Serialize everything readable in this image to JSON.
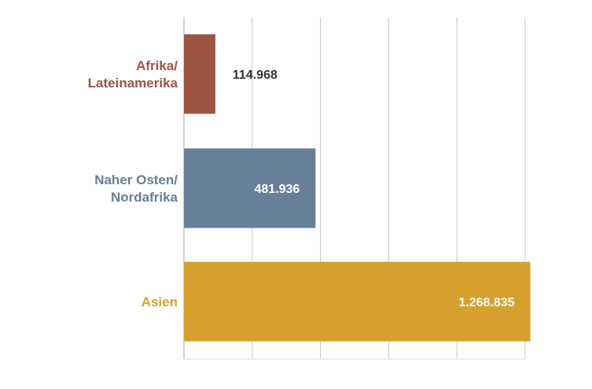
{
  "chart_data": {
    "type": "bar",
    "orientation": "horizontal",
    "title": "",
    "xlabel": "",
    "ylabel": "",
    "categories": [
      [
        "Afrika/",
        "Lateinamerika"
      ],
      [
        "Naher Osten/",
        "Nordafrika"
      ],
      [
        "Asien"
      ]
    ],
    "values": [
      114968,
      481936,
      1268835
    ],
    "value_labels": [
      "114.968",
      "481.936",
      "1.268.835"
    ],
    "colors": [
      "#9e5443",
      "#677f98",
      "#d5a02e"
    ],
    "value_label_colors": [
      "#333333",
      "#ffffff",
      "#ffffff"
    ],
    "value_label_position": [
      "outside",
      "inside",
      "inside"
    ],
    "xlim": [
      0,
      1250000
    ],
    "grid": true,
    "legend": "none"
  }
}
